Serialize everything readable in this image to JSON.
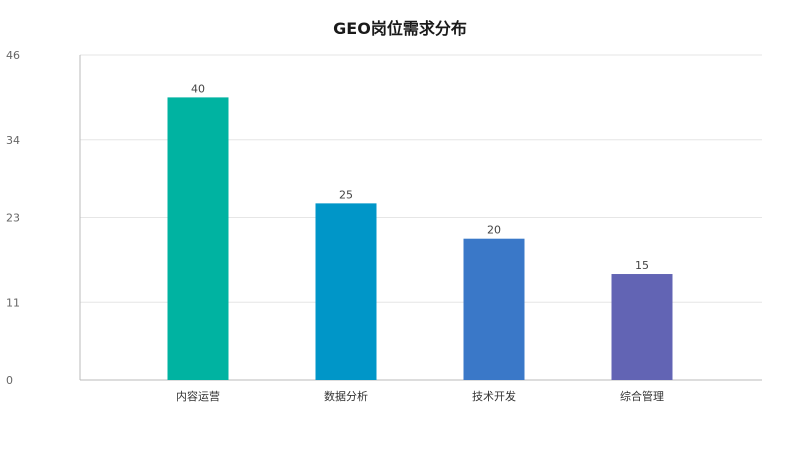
{
  "chart_data": {
    "type": "bar",
    "title": "GEO岗位需求分布",
    "categories": [
      "内容运营",
      "数据分析",
      "技术开发",
      "综合管理"
    ],
    "values": [
      40,
      25,
      20,
      15
    ],
    "colors": [
      "#00b3a1",
      "#0096c8",
      "#3a78c8",
      "#6264b4"
    ],
    "yticks": [
      "0",
      "11",
      "23",
      "34",
      "46"
    ],
    "ylim": [
      0,
      46
    ],
    "xlabel": "",
    "ylabel": "",
    "grid": true,
    "legend": "none"
  }
}
